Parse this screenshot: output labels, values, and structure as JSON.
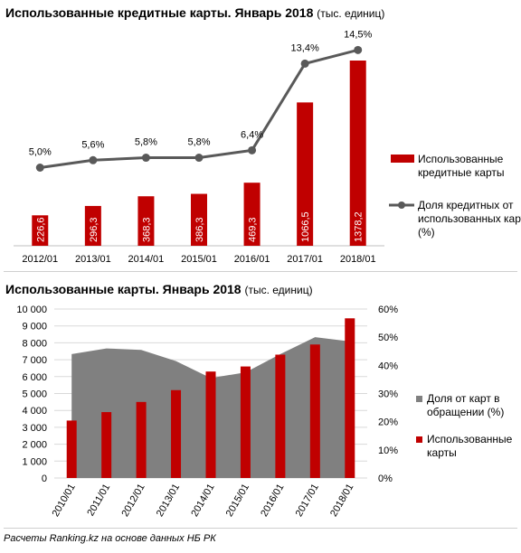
{
  "chart_data": [
    {
      "type": "bar",
      "title": "Использованные кредитные карты. Январь 2018",
      "subtitle": "(тыс. единиц)",
      "categories": [
        "2012/01",
        "2013/01",
        "2014/01",
        "2015/01",
        "2016/01",
        "2017/01",
        "2018/01"
      ],
      "series": [
        {
          "name": "Использованные кредитные карты",
          "type": "bar",
          "color": "#c00000",
          "values": [
            226.6,
            296.3,
            368.3,
            386.3,
            469.3,
            1066.5,
            1378.2
          ],
          "labels": [
            "226,6",
            "296,3",
            "368,3",
            "386,3",
            "469,3",
            "1066,5",
            "1378,2"
          ]
        },
        {
          "name": "Доля кредитных от использованных карт (%)",
          "type": "line",
          "color": "#595959",
          "values": [
            5.0,
            5.6,
            5.8,
            5.8,
            6.4,
            13.4,
            14.5
          ],
          "labels": [
            "5,0%",
            "5,6%",
            "5,8%",
            "5,8%",
            "6,4%",
            "13,4%",
            "14,5%"
          ]
        }
      ],
      "legend_position": "right",
      "grid": false
    },
    {
      "type": "bar",
      "title": "Использованные карты. Январь 2018",
      "subtitle": "(тыс. единиц)",
      "categories": [
        "2010/01",
        "2011/01",
        "2012/01",
        "2013/01",
        "2014/01",
        "2015/01",
        "2016/01",
        "2017/01",
        "2018/01"
      ],
      "y_ticks": [
        "0",
        "1 000",
        "2 000",
        "3 000",
        "4 000",
        "5 000",
        "6 000",
        "7 000",
        "8 000",
        "9 000",
        "10 000"
      ],
      "y2_ticks": [
        "0%",
        "10%",
        "20%",
        "30%",
        "40%",
        "50%",
        "60%"
      ],
      "ylim": [
        0,
        10000
      ],
      "y2lim": [
        0,
        60
      ],
      "series": [
        {
          "name": "Доля от карт в обращении (%)",
          "type": "area",
          "color": "#808080",
          "values": [
            44,
            46,
            45.5,
            41.5,
            35.5,
            37.5,
            44,
            50,
            48.5
          ]
        },
        {
          "name": "Использованные карты",
          "type": "bar",
          "color": "#c00000",
          "values": [
            3400,
            3900,
            4500,
            5200,
            6300,
            6600,
            7300,
            7900,
            9450
          ]
        }
      ],
      "legend_position": "right",
      "grid": true
    }
  ],
  "footer": "Расчеты Ranking.kz на основе данных НБ РК"
}
